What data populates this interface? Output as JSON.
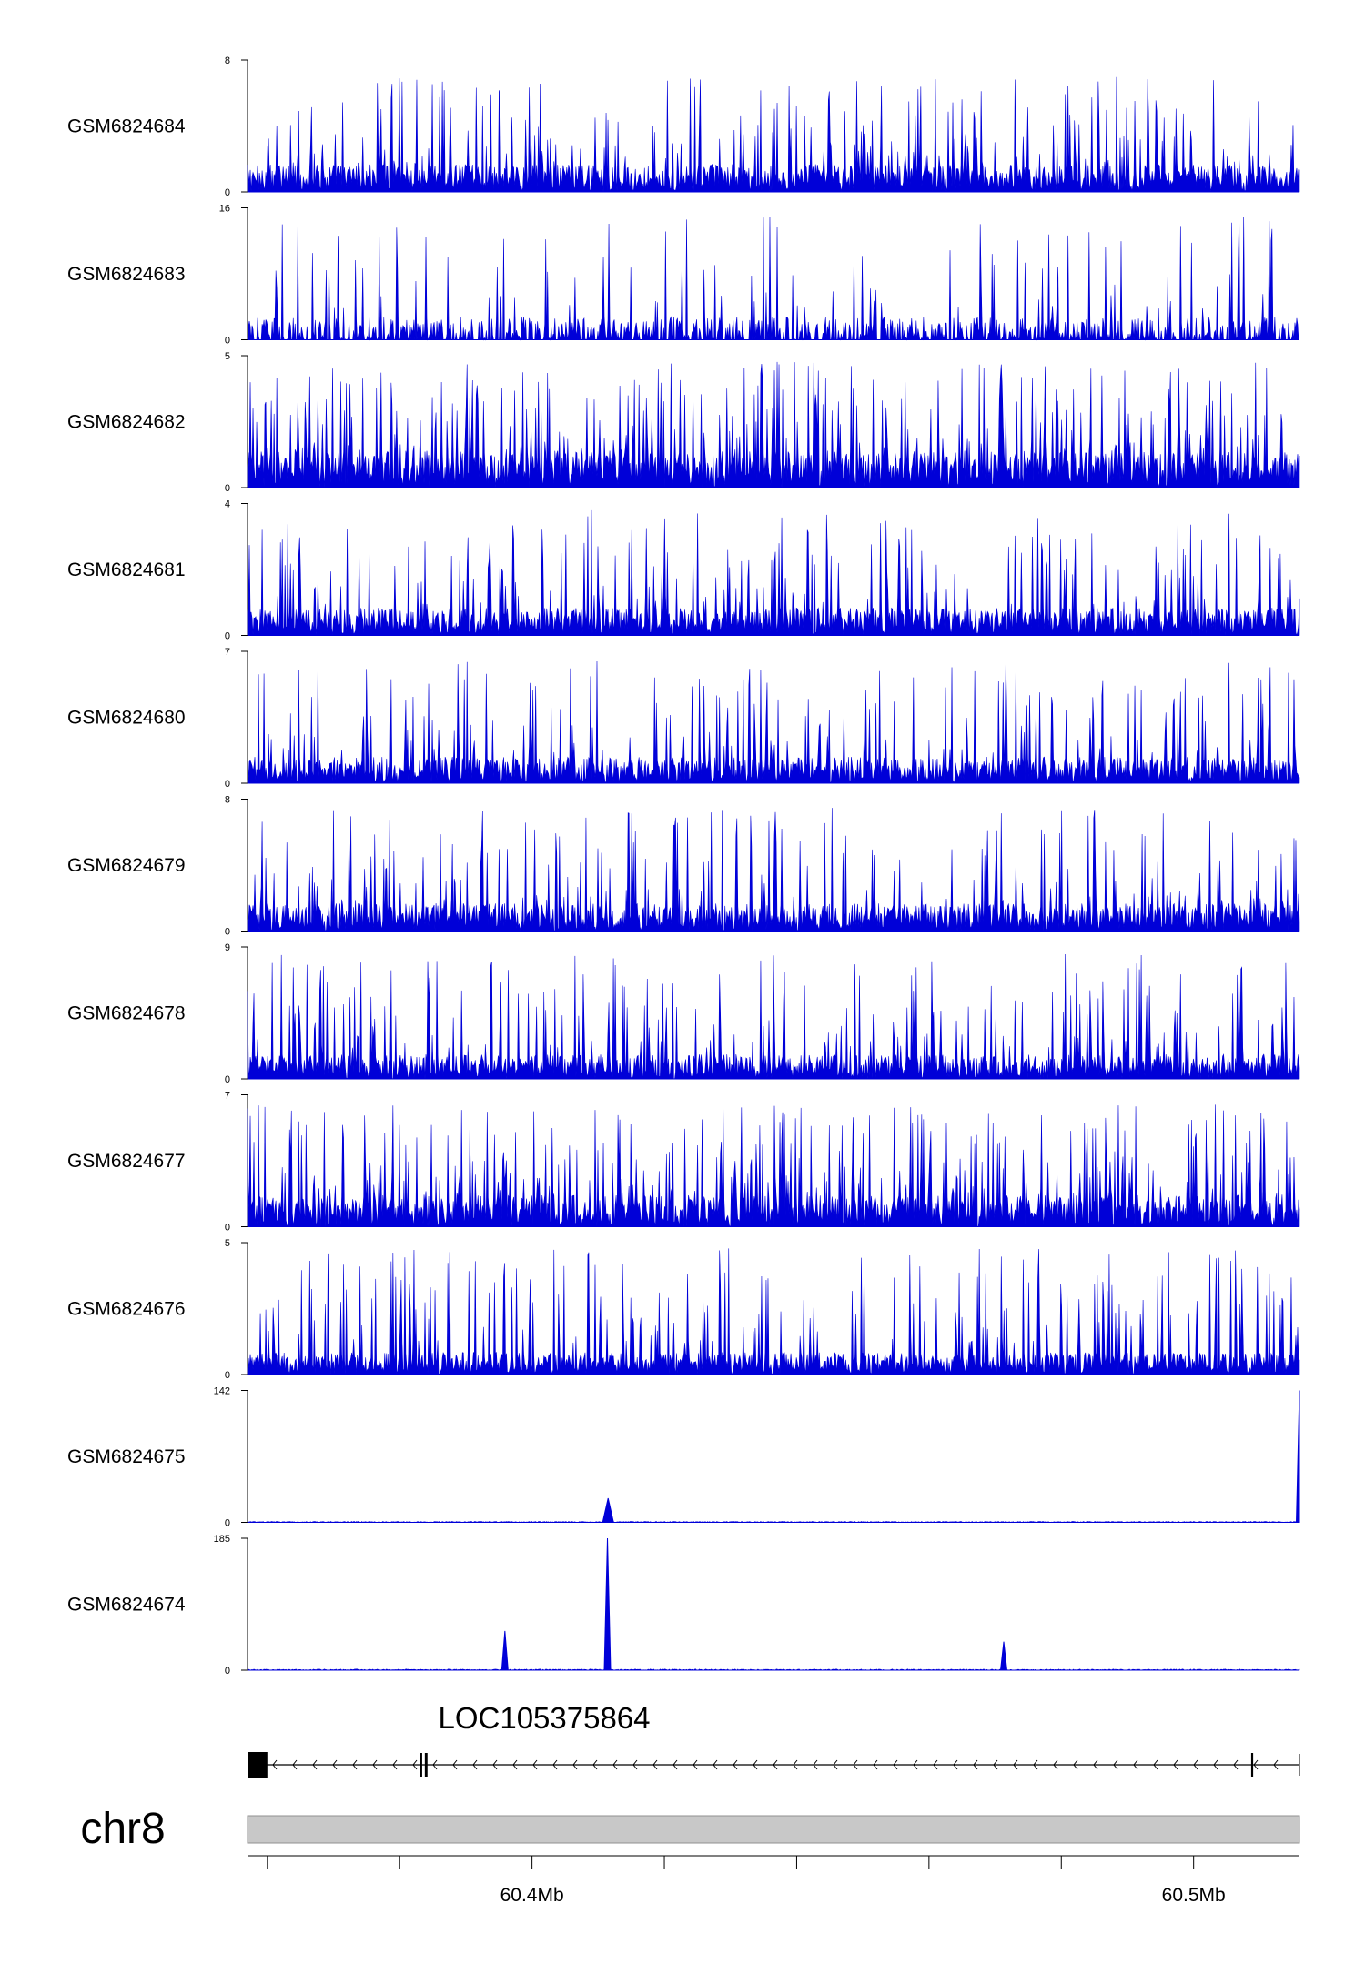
{
  "chart_data": {
    "type": "area",
    "region": {
      "start": 60357000,
      "end": 60516000
    },
    "tracks": [
      {
        "name": "GSM6824684",
        "ymax": 8,
        "baseline": 1.2,
        "peak": 7,
        "profile": "noisy"
      },
      {
        "name": "GSM6824683",
        "ymax": 16,
        "baseline": 2,
        "peak": 15,
        "profile": "sparse"
      },
      {
        "name": "GSM6824682",
        "ymax": 5,
        "baseline": 1,
        "peak": 4.8,
        "profile": "dense"
      },
      {
        "name": "GSM6824681",
        "ymax": 4,
        "baseline": 0.6,
        "peak": 3.8,
        "profile": "noisy"
      },
      {
        "name": "GSM6824680",
        "ymax": 7,
        "baseline": 1,
        "peak": 6.5,
        "profile": "noisy"
      },
      {
        "name": "GSM6824679",
        "ymax": 8,
        "baseline": 1.2,
        "peak": 7.5,
        "profile": "noisy"
      },
      {
        "name": "GSM6824678",
        "ymax": 9,
        "baseline": 1.2,
        "peak": 8.5,
        "profile": "noisy"
      },
      {
        "name": "GSM6824677",
        "ymax": 7,
        "baseline": 1.2,
        "peak": 6.5,
        "profile": "dense"
      },
      {
        "name": "GSM6824676",
        "ymax": 5,
        "baseline": 0.6,
        "peak": 4.8,
        "profile": "noisy"
      },
      {
        "name": "GSM6824675",
        "ymax": 142,
        "baseline": 1,
        "peak": 6,
        "profile": "flat",
        "peaks": [
          {
            "x": 60411500,
            "height": 26
          },
          {
            "x": 60516000,
            "height": 142
          }
        ]
      },
      {
        "name": "GSM6824674",
        "ymax": 185,
        "baseline": 1.5,
        "peak": 6,
        "profile": "flat",
        "peaks": [
          {
            "x": 60395900,
            "height": 55
          },
          {
            "x": 60411400,
            "height": 185
          },
          {
            "x": 60471300,
            "height": 40
          }
        ]
      }
    ],
    "gene": {
      "name": "LOC105375864",
      "strand": "-",
      "start": 60357000,
      "end": 60516000,
      "exons": [
        [
          60357000,
          60360000
        ],
        [
          60383000,
          60383400
        ],
        [
          60383800,
          60384200
        ],
        [
          60508700,
          60509000
        ]
      ]
    },
    "chromosome": "chr8",
    "x_ticks": [
      60360000,
      60380000,
      60400000,
      60420000,
      60440000,
      60460000,
      60480000,
      60500000
    ],
    "x_tick_labels": [
      {
        "value": 60400000,
        "label": "60.4Mb"
      },
      {
        "value": 60500000,
        "label": "60.5Mb"
      }
    ],
    "colors": {
      "signal": "#0000d8",
      "ideogram": "#c8c8c8",
      "axis": "#000000"
    }
  }
}
